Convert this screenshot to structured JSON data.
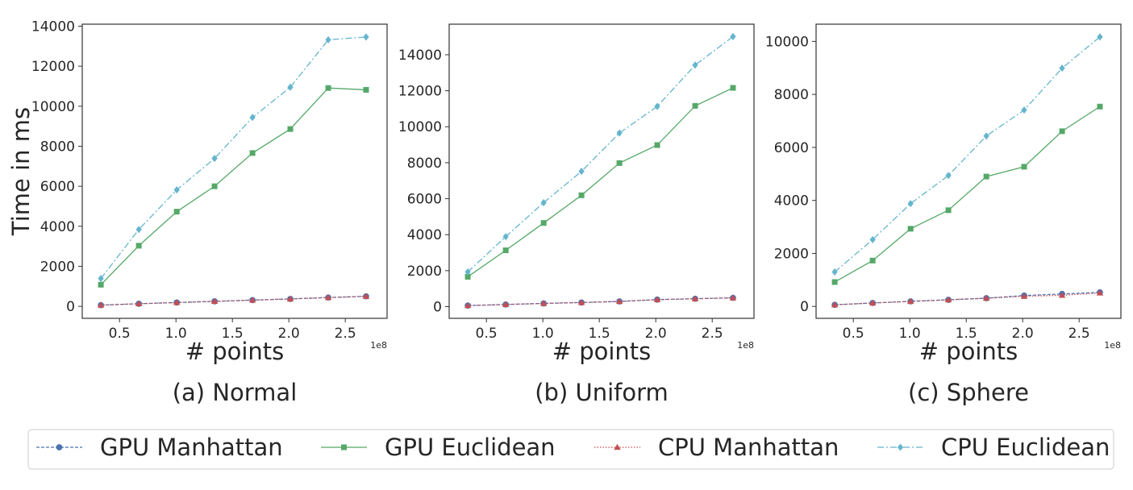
{
  "legend": {
    "entries": [
      {
        "label": "GPU Manhattan",
        "color": "#4c72b0",
        "dash": "4,2",
        "marker": "circle"
      },
      {
        "label": "GPU Euclidean",
        "color": "#55a868",
        "dash": "",
        "marker": "square"
      },
      {
        "label": "CPU Manhattan",
        "color": "#c44e52",
        "dash": "1.5,2",
        "marker": "triangle"
      },
      {
        "label": "CPU Euclidean",
        "color": "#64b5cd",
        "dash": "8,3,2,3",
        "marker": "diamond"
      }
    ]
  },
  "chart_data": [
    {
      "type": "line",
      "caption": "(a) Normal",
      "xlabel": "# points",
      "ylabel": "Time in ms",
      "x_offset_label": "1e8",
      "xlim": [
        0.17,
        2.87
      ],
      "ylim": [
        -600,
        14100
      ],
      "xticks": [
        0.5,
        1.0,
        1.5,
        2.0,
        2.5
      ],
      "xtick_labels": [
        "0.5",
        "1.0",
        "1.5",
        "2.0",
        "2.5"
      ],
      "yticks": [
        0,
        2000,
        4000,
        6000,
        8000,
        10000,
        12000,
        14000
      ],
      "ytick_labels": [
        "0",
        "2000",
        "4000",
        "6000",
        "8000",
        "10000",
        "12000",
        "14000"
      ],
      "x": [
        0.335,
        0.671,
        1.007,
        1.342,
        1.678,
        2.013,
        2.349,
        2.684
      ],
      "series": [
        {
          "name": "GPU Manhattan",
          "values": [
            60,
            130,
            190,
            250,
            310,
            370,
            440,
            500
          ]
        },
        {
          "name": "GPU Euclidean",
          "values": [
            1080,
            3030,
            4730,
            6000,
            7660,
            8860,
            10910,
            10820
          ]
        },
        {
          "name": "CPU Manhattan",
          "values": [
            60,
            130,
            190,
            250,
            310,
            370,
            440,
            500
          ]
        },
        {
          "name": "CPU Euclidean",
          "values": [
            1390,
            3840,
            5820,
            7390,
            9440,
            10950,
            13320,
            13460
          ]
        }
      ]
    },
    {
      "type": "line",
      "caption": "(b) Uniform",
      "xlabel": "# points",
      "ylabel": "",
      "x_offset_label": "1e8",
      "xlim": [
        0.17,
        2.87
      ],
      "ylim": [
        -650,
        15700
      ],
      "xticks": [
        0.5,
        1.0,
        1.5,
        2.0,
        2.5
      ],
      "xtick_labels": [
        "0.5",
        "1.0",
        "1.5",
        "2.0",
        "2.5"
      ],
      "yticks": [
        0,
        2000,
        4000,
        6000,
        8000,
        10000,
        12000,
        14000
      ],
      "ytick_labels": [
        "0",
        "2000",
        "4000",
        "6000",
        "8000",
        "10000",
        "12000",
        "14000"
      ],
      "x": [
        0.335,
        0.671,
        1.007,
        1.342,
        1.678,
        2.013,
        2.349,
        2.684
      ],
      "series": [
        {
          "name": "GPU Manhattan",
          "values": [
            60,
            120,
            180,
            230,
            290,
            390,
            440,
            490
          ]
        },
        {
          "name": "GPU Euclidean",
          "values": [
            1660,
            3130,
            4650,
            6190,
            7980,
            8980,
            11160,
            12160
          ]
        },
        {
          "name": "CPU Manhattan",
          "values": [
            60,
            120,
            180,
            230,
            290,
            390,
            440,
            490
          ]
        },
        {
          "name": "CPU Euclidean",
          "values": [
            1930,
            3890,
            5780,
            7520,
            9650,
            11130,
            13430,
            15010
          ]
        }
      ]
    },
    {
      "type": "line",
      "caption": "(c) Sphere",
      "xlabel": "# points",
      "ylabel": "",
      "x_offset_label": "1e8",
      "xlim": [
        0.17,
        2.87
      ],
      "ylim": [
        -450,
        10650
      ],
      "xticks": [
        0.5,
        1.0,
        1.5,
        2.0,
        2.5
      ],
      "xtick_labels": [
        "0.5",
        "1.0",
        "1.5",
        "2.0",
        "2.5"
      ],
      "yticks": [
        0,
        2000,
        4000,
        6000,
        8000,
        10000
      ],
      "ytick_labels": [
        "0",
        "2000",
        "4000",
        "6000",
        "8000",
        "10000"
      ],
      "x": [
        0.335,
        0.671,
        1.007,
        1.342,
        1.678,
        2.013,
        2.349,
        2.684
      ],
      "series": [
        {
          "name": "GPU Manhattan",
          "values": [
            60,
            130,
            190,
            250,
            310,
            410,
            470,
            530
          ]
        },
        {
          "name": "GPU Euclidean",
          "values": [
            920,
            1730,
            2930,
            3630,
            4900,
            5270,
            6610,
            7540
          ]
        },
        {
          "name": "CPU Manhattan",
          "values": [
            60,
            130,
            190,
            250,
            310,
            380,
            420,
            510
          ]
        },
        {
          "name": "CPU Euclidean",
          "values": [
            1300,
            2520,
            3880,
            4940,
            6430,
            7410,
            8990,
            10170
          ]
        }
      ]
    }
  ]
}
